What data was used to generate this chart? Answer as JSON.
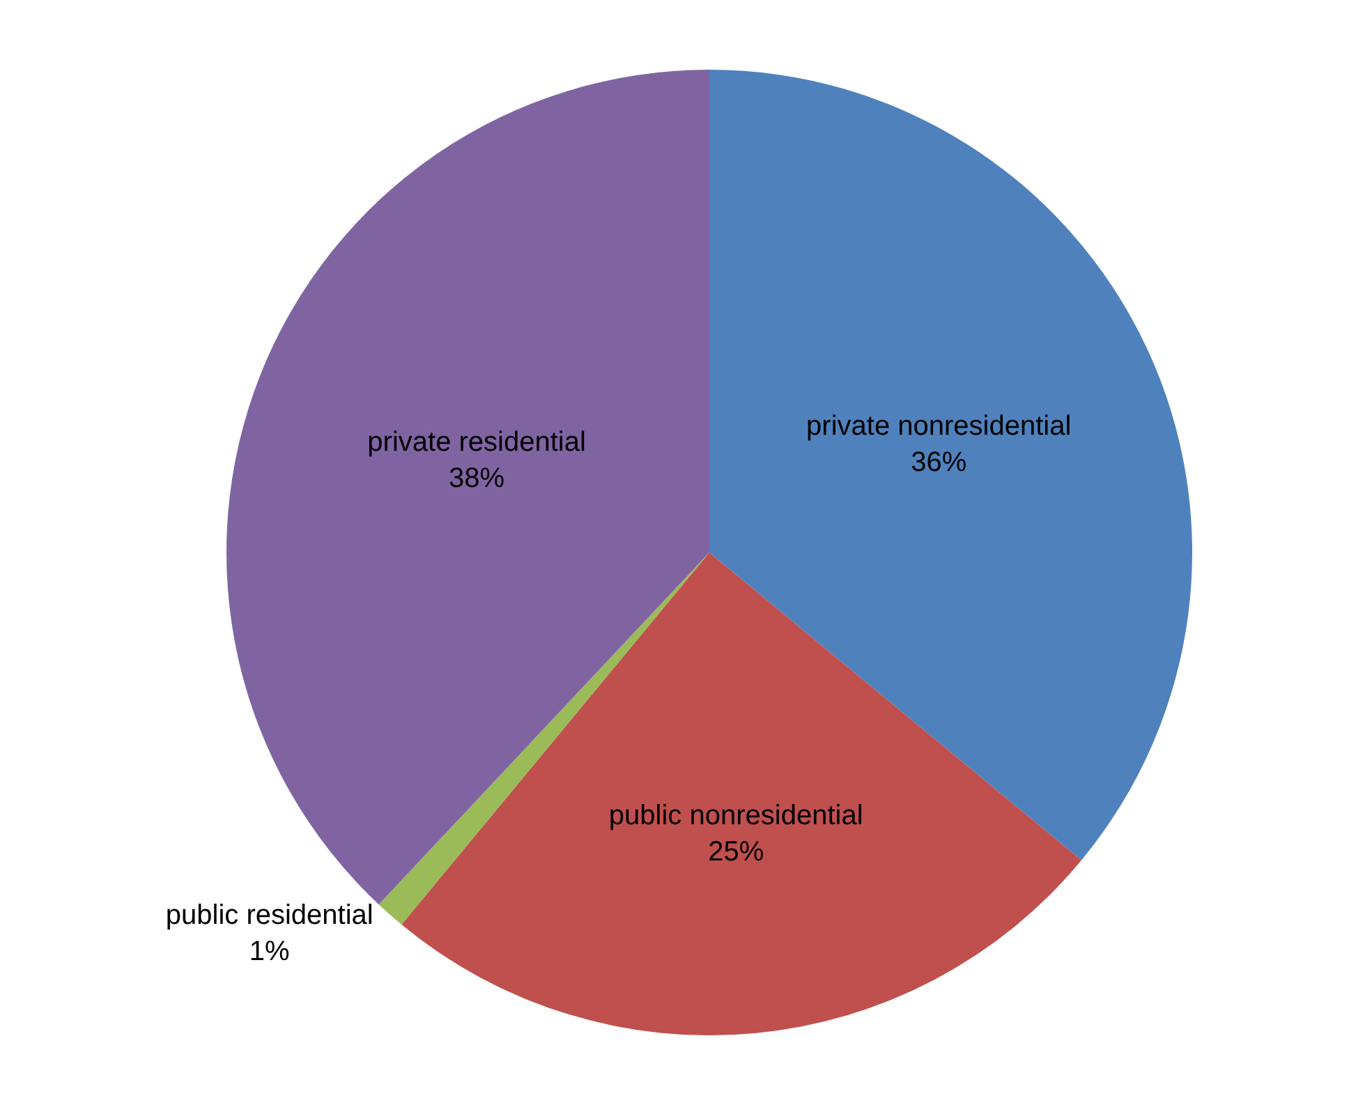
{
  "chart_data": {
    "type": "pie",
    "categories": [
      "private nonresidential",
      "public nonresidential",
      "public residential",
      "private residential"
    ],
    "values": [
      36,
      25,
      1,
      38
    ],
    "value_labels": [
      "36%",
      "25%",
      "1%",
      "38%"
    ],
    "colors": [
      "#4f81bd",
      "#c0504d",
      "#9bbb59",
      "#8064a2"
    ],
    "legend": false
  }
}
